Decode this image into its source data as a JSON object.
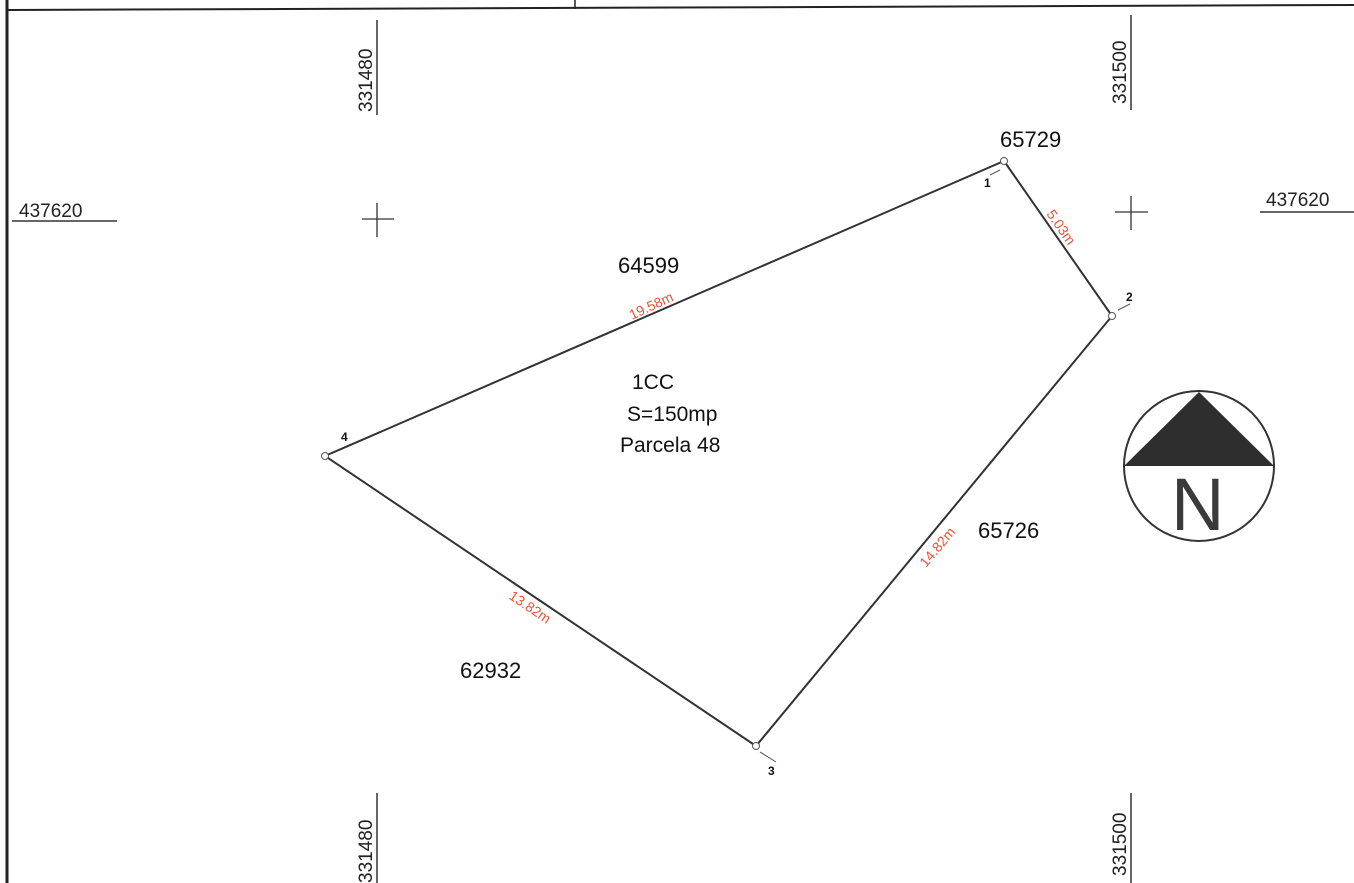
{
  "grid": {
    "x_ticks": [
      {
        "label": "331480"
      },
      {
        "label": "331500"
      }
    ],
    "y_ticks": [
      {
        "label": "437620"
      }
    ]
  },
  "parcel": {
    "id": "1CC",
    "area": "S=150mp",
    "name": "Parcela 48",
    "vertices": [
      {
        "label": "1"
      },
      {
        "label": "2"
      },
      {
        "label": "3"
      },
      {
        "label": "4"
      }
    ],
    "edges": [
      {
        "from": "4",
        "to": "1",
        "length": "19.58m"
      },
      {
        "from": "1",
        "to": "2",
        "length": "5.03m"
      },
      {
        "from": "2",
        "to": "3",
        "length": "14.82m"
      },
      {
        "from": "4",
        "to": "3",
        "length": "13.82m"
      }
    ]
  },
  "neighbors": [
    {
      "id": "65729"
    },
    {
      "id": "64599"
    },
    {
      "id": "65726"
    },
    {
      "id": "62932"
    }
  ],
  "north_arrow": {
    "label": "N"
  },
  "colors": {
    "boundary": "#333333",
    "length_labels": "#e8553a",
    "frame": "#222222",
    "north_fill": "#2e2e2e"
  }
}
